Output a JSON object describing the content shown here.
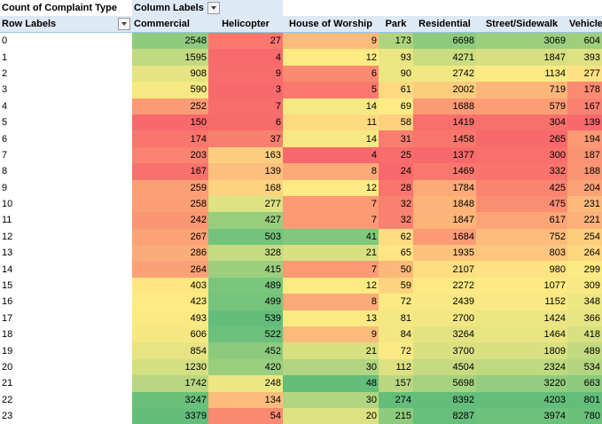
{
  "pivot": {
    "corner_label": "Count of Complaint Type",
    "column_labels_caption": "Column Labels",
    "row_labels_caption": "Row Labels",
    "columns": [
      "Commercial",
      "Helicopter",
      "House of Worship",
      "Park",
      "Residential",
      "Street/Sidewalk",
      "Vehicle"
    ],
    "rows": [
      {
        "label": "0",
        "values": [
          2548,
          27,
          9,
          173,
          6698,
          3069,
          604
        ]
      },
      {
        "label": "1",
        "values": [
          1595,
          4,
          12,
          93,
          4271,
          1847,
          393
        ]
      },
      {
        "label": "2",
        "values": [
          908,
          9,
          6,
          90,
          2742,
          1134,
          277
        ]
      },
      {
        "label": "3",
        "values": [
          590,
          3,
          5,
          61,
          2002,
          719,
          178
        ]
      },
      {
        "label": "4",
        "values": [
          252,
          7,
          14,
          69,
          1688,
          579,
          167
        ]
      },
      {
        "label": "5",
        "values": [
          150,
          6,
          11,
          58,
          1419,
          304,
          139
        ]
      },
      {
        "label": "6",
        "values": [
          174,
          37,
          14,
          31,
          1458,
          265,
          194
        ]
      },
      {
        "label": "7",
        "values": [
          203,
          163,
          4,
          25,
          1377,
          300,
          187
        ]
      },
      {
        "label": "8",
        "values": [
          167,
          139,
          8,
          24,
          1469,
          332,
          188
        ]
      },
      {
        "label": "9",
        "values": [
          259,
          168,
          12,
          28,
          1784,
          425,
          204
        ]
      },
      {
        "label": "10",
        "values": [
          258,
          277,
          7,
          32,
          1848,
          475,
          231
        ]
      },
      {
        "label": "11",
        "values": [
          242,
          427,
          7,
          32,
          1847,
          617,
          221
        ]
      },
      {
        "label": "12",
        "values": [
          267,
          503,
          41,
          62,
          1684,
          752,
          254
        ]
      },
      {
        "label": "13",
        "values": [
          286,
          328,
          21,
          65,
          1935,
          803,
          264
        ]
      },
      {
        "label": "14",
        "values": [
          264,
          415,
          7,
          50,
          2107,
          980,
          299
        ]
      },
      {
        "label": "15",
        "values": [
          403,
          489,
          12,
          59,
          2272,
          1077,
          309
        ]
      },
      {
        "label": "16",
        "values": [
          423,
          499,
          8,
          72,
          2439,
          1152,
          348
        ]
      },
      {
        "label": "17",
        "values": [
          493,
          539,
          13,
          81,
          2700,
          1424,
          366
        ]
      },
      {
        "label": "18",
        "values": [
          606,
          522,
          9,
          84,
          3264,
          1464,
          418
        ]
      },
      {
        "label": "19",
        "values": [
          854,
          452,
          21,
          72,
          3700,
          1809,
          489
        ]
      },
      {
        "label": "20",
        "values": [
          1230,
          420,
          30,
          112,
          4504,
          2324,
          534
        ]
      },
      {
        "label": "21",
        "values": [
          1742,
          248,
          48,
          157,
          5698,
          3220,
          663
        ]
      },
      {
        "label": "22",
        "values": [
          3247,
          134,
          30,
          274,
          8392,
          4203,
          801
        ]
      },
      {
        "label": "23",
        "values": [
          3379,
          54,
          20,
          215,
          8287,
          3974,
          780
        ]
      }
    ]
  },
  "colors": {
    "scale_low": "#f8696b",
    "scale_mid": "#ffeb84",
    "scale_high": "#63be7b",
    "header_fill": "#dde9f5"
  }
}
